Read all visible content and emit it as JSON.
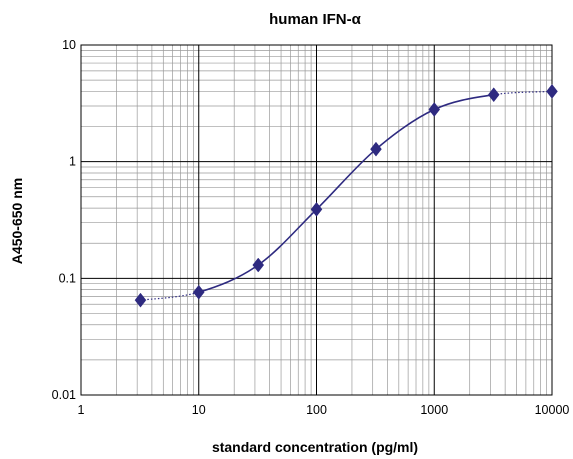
{
  "chart_data": {
    "type": "scatter",
    "title": "human IFN-α",
    "xlabel": "standard concentration (pg/ml)",
    "ylabel": "A450-650 nm",
    "x_scale": "log",
    "y_scale": "log",
    "xlim": [
      1,
      10000
    ],
    "ylim": [
      0.01,
      10
    ],
    "x_tick_labels": [
      "1",
      "10",
      "100",
      "1000",
      "10000"
    ],
    "y_tick_labels": [
      "0.01",
      "0.1",
      "1",
      "10"
    ],
    "grid": true,
    "legend": "none",
    "series": [
      {
        "marker": "diamond",
        "fit_line": "smooth curve, dotted beyond measured points",
        "points": [
          {
            "x": 3.2,
            "y": 0.065
          },
          {
            "x": 10,
            "y": 0.076
          },
          {
            "x": 32,
            "y": 0.13
          },
          {
            "x": 100,
            "y": 0.39
          },
          {
            "x": 320,
            "y": 1.28
          },
          {
            "x": 1000,
            "y": 2.8
          },
          {
            "x": 3200,
            "y": 3.75
          },
          {
            "x": 10000,
            "y": 4.0
          }
        ]
      }
    ],
    "colors": {
      "series": "#2e2a80",
      "major_grid": "#000000",
      "minor_grid": "#9a9a9a",
      "axis": "#000000"
    }
  }
}
